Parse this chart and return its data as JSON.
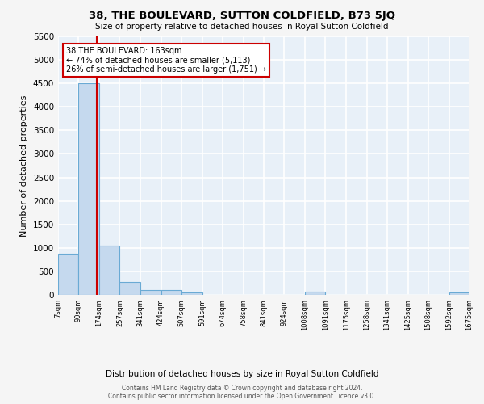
{
  "title": "38, THE BOULEVARD, SUTTON COLDFIELD, B73 5JQ",
  "subtitle": "Size of property relative to detached houses in Royal Sutton Coldfield",
  "xlabel": "Distribution of detached houses by size in Royal Sutton Coldfield",
  "ylabel": "Number of detached properties",
  "bin_edges": [
    7,
    90,
    174,
    257,
    341,
    424,
    507,
    591,
    674,
    758,
    841,
    924,
    1008,
    1091,
    1175,
    1258,
    1341,
    1425,
    1508,
    1592,
    1675
  ],
  "bar_heights": [
    870,
    4500,
    1050,
    270,
    95,
    95,
    60,
    0,
    0,
    0,
    0,
    0,
    70,
    0,
    0,
    0,
    0,
    0,
    0,
    60
  ],
  "bar_color": "#c5d9ee",
  "bar_edge_color": "#6aaad4",
  "property_line_x": 163,
  "property_line_color": "#cc0000",
  "ylim": [
    0,
    5500
  ],
  "yticks": [
    0,
    500,
    1000,
    1500,
    2000,
    2500,
    3000,
    3500,
    4000,
    4500,
    5000,
    5500
  ],
  "annotation_title": "38 THE BOULEVARD: 163sqm",
  "annotation_line1": "← 74% of detached houses are smaller (5,113)",
  "annotation_line2": "26% of semi-detached houses are larger (1,751) →",
  "annotation_box_color": "#cc0000",
  "annotation_fill": "#ffffff",
  "footer_line1": "Contains HM Land Registry data © Crown copyright and database right 2024.",
  "footer_line2": "Contains public sector information licensed under the Open Government Licence v3.0.",
  "bg_color": "#e8f0f8",
  "grid_color": "#ffffff",
  "tick_labels": [
    "7sqm",
    "90sqm",
    "174sqm",
    "257sqm",
    "341sqm",
    "424sqm",
    "507sqm",
    "591sqm",
    "674sqm",
    "758sqm",
    "841sqm",
    "924sqm",
    "1008sqm",
    "1091sqm",
    "1175sqm",
    "1258sqm",
    "1341sqm",
    "1425sqm",
    "1508sqm",
    "1592sqm",
    "1675sqm"
  ],
  "fig_bg_color": "#f5f5f5"
}
